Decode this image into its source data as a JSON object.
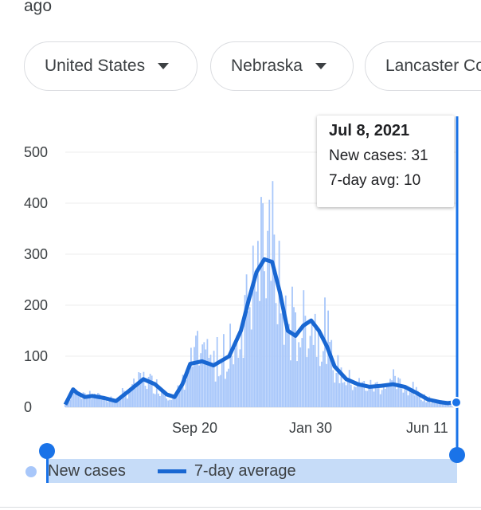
{
  "header": {
    "text": "ago"
  },
  "filters": [
    {
      "label": "United States",
      "has_caret": true
    },
    {
      "label": "Nebraska",
      "has_caret": true
    },
    {
      "label": "Lancaster Co",
      "has_caret": false
    }
  ],
  "tooltip": {
    "date": "Jul 8, 2021",
    "new_cases": "New cases: 31",
    "avg": "7-day avg: 10"
  },
  "legend": {
    "bars_label": "New cases",
    "line_label": "7-day average"
  },
  "colors": {
    "bar": "#a8c7fa",
    "line": "#1967d2",
    "handle": "#1a73e8",
    "band": "#c6dcf8"
  },
  "chart_data": {
    "type": "bar",
    "series": [
      {
        "name": "New cases",
        "kind": "bar"
      },
      {
        "name": "7-day average",
        "kind": "line"
      }
    ],
    "x_ticks": [
      "Sep 20",
      "Jan 30",
      "Jun 11"
    ],
    "y_ticks": [
      "0",
      "100",
      "200",
      "300",
      "400",
      "500"
    ],
    "ylim": [
      0,
      500
    ],
    "grid": true,
    "avg_points": [
      [
        0,
        5
      ],
      [
        0.02,
        35
      ],
      [
        0.03,
        28
      ],
      [
        0.05,
        20
      ],
      [
        0.07,
        22
      ],
      [
        0.1,
        18
      ],
      [
        0.13,
        12
      ],
      [
        0.16,
        30
      ],
      [
        0.2,
        55
      ],
      [
        0.23,
        45
      ],
      [
        0.26,
        25
      ],
      [
        0.28,
        20
      ],
      [
        0.3,
        45
      ],
      [
        0.32,
        85
      ],
      [
        0.35,
        90
      ],
      [
        0.38,
        82
      ],
      [
        0.42,
        100
      ],
      [
        0.45,
        150
      ],
      [
        0.47,
        210
      ],
      [
        0.49,
        265
      ],
      [
        0.51,
        290
      ],
      [
        0.53,
        285
      ],
      [
        0.55,
        225
      ],
      [
        0.57,
        150
      ],
      [
        0.59,
        140
      ],
      [
        0.61,
        160
      ],
      [
        0.63,
        170
      ],
      [
        0.65,
        150
      ],
      [
        0.67,
        120
      ],
      [
        0.69,
        80
      ],
      [
        0.72,
        55
      ],
      [
        0.75,
        45
      ],
      [
        0.78,
        40
      ],
      [
        0.81,
        42
      ],
      [
        0.84,
        45
      ],
      [
        0.87,
        40
      ],
      [
        0.9,
        28
      ],
      [
        0.93,
        15
      ],
      [
        0.96,
        10
      ],
      [
        0.98,
        8
      ],
      [
        1,
        10
      ]
    ]
  }
}
